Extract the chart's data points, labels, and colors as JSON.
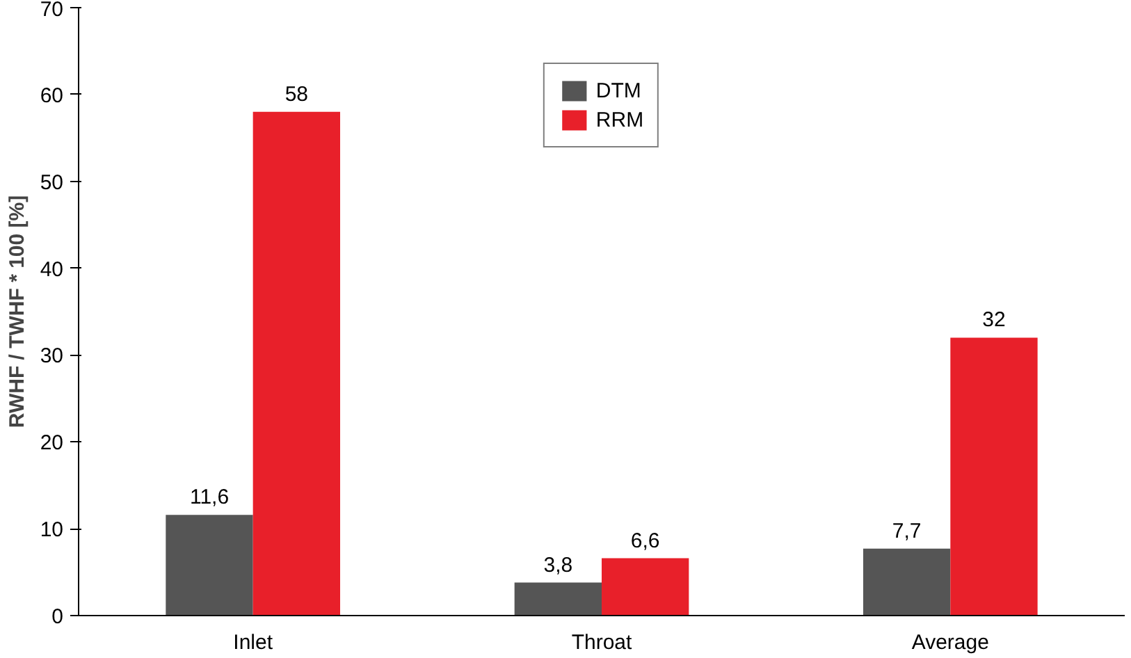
{
  "chart_data": {
    "type": "bar",
    "ylabel": "RWHF / TWHF * 100 [%]",
    "categories": [
      "Inlet",
      "Throat",
      "Average"
    ],
    "series": [
      {
        "name": "DTM",
        "color": "#555555",
        "values": [
          11.6,
          3.8,
          7.7
        ],
        "value_labels": [
          "11,6",
          "3,8",
          "7,7"
        ]
      },
      {
        "name": "RRM",
        "color": "#e8202a",
        "values": [
          58,
          6.6,
          32
        ],
        "value_labels": [
          "58",
          "6,6",
          "32"
        ]
      }
    ],
    "ylim": [
      0,
      70
    ],
    "yticks": [
      0,
      10,
      20,
      30,
      40,
      50,
      60,
      70
    ],
    "grid": false,
    "legend": "top"
  }
}
